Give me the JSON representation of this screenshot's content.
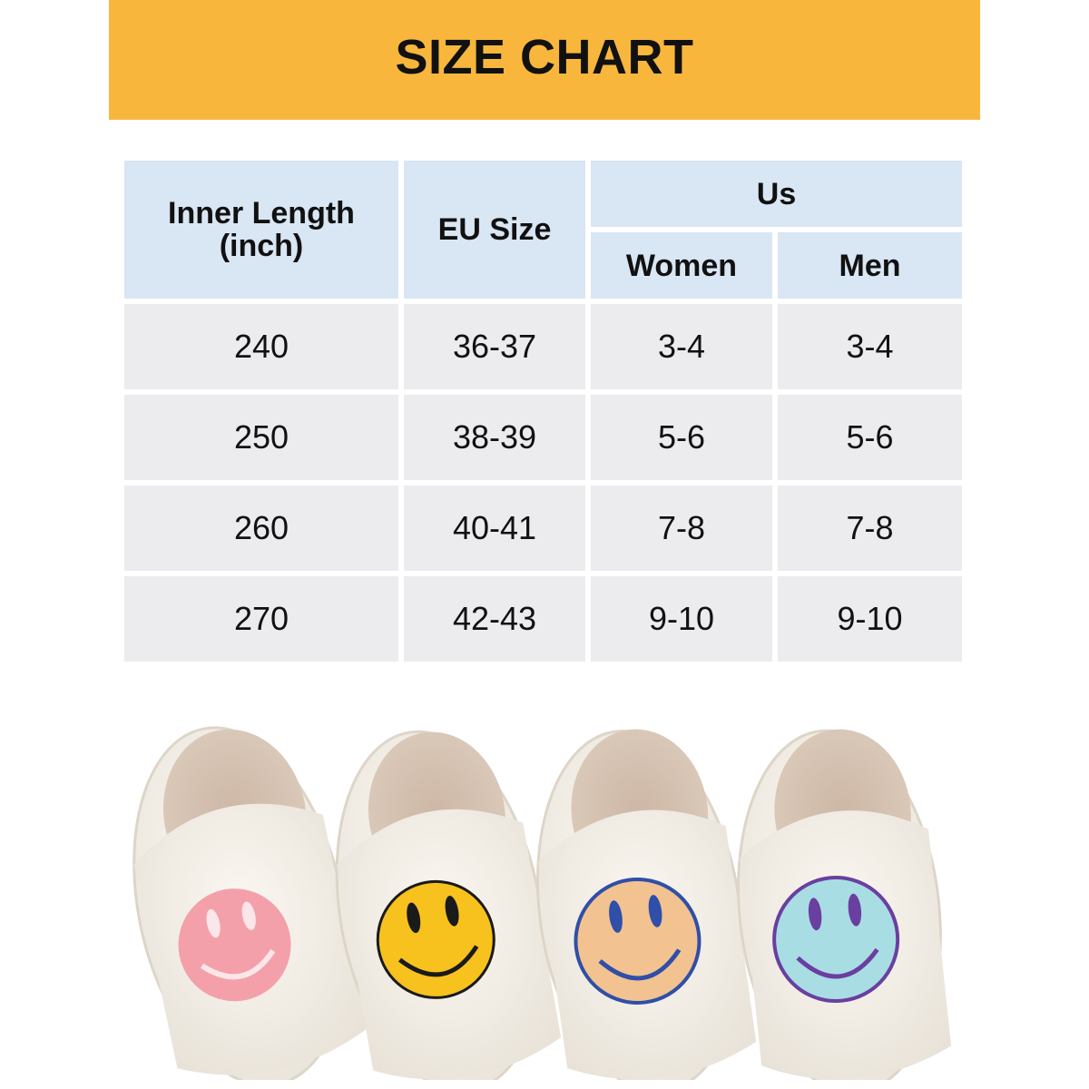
{
  "header": {
    "title": "SIZE CHART"
  },
  "table": {
    "col_inner_length": "Inner Length\n(inch)",
    "col_eu_size": "EU Size",
    "col_us": "Us",
    "col_us_women": "Women",
    "col_us_men": "Men",
    "rows": [
      {
        "inner_length": "240",
        "eu": "36-37",
        "women": "3-4",
        "men": "3-4"
      },
      {
        "inner_length": "250",
        "eu": "38-39",
        "women": "5-6",
        "men": "5-6"
      },
      {
        "inner_length": "260",
        "eu": "40-41",
        "women": "7-8",
        "men": "7-8"
      },
      {
        "inner_length": "270",
        "eu": "42-43",
        "women": "9-10",
        "men": "9-10"
      }
    ]
  },
  "colors": {
    "banner": "#f8b73c",
    "header_cell": "#d9e6f3",
    "body_cell": "#ecebee",
    "slipper_faces": [
      "#f4a0aa",
      "#f7c21e",
      "#f2c290",
      "#a8dde4"
    ]
  },
  "product_image": {
    "icons": [
      "pink-smiley-slipper",
      "yellow-smiley-slipper",
      "peach-smiley-slipper",
      "blue-smiley-slipper"
    ]
  }
}
